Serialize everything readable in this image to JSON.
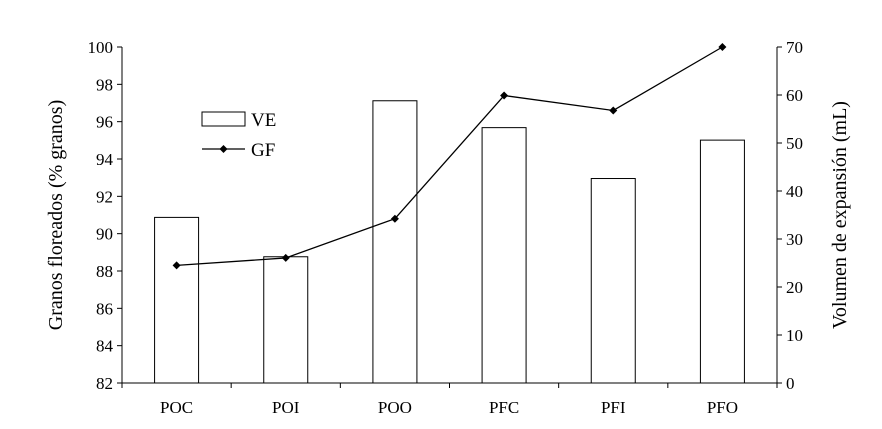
{
  "chart_data": {
    "type": "bar+line",
    "categories": [
      "POC",
      "POI",
      "POO",
      "PFC",
      "PFI",
      "PFO"
    ],
    "bar_series": {
      "name": "VE",
      "axis": "right",
      "values": [
        34.5,
        26.3,
        58.8,
        53.2,
        42.6,
        50.6
      ]
    },
    "line_series": {
      "name": "GF",
      "axis": "left",
      "values": [
        88.3,
        88.7,
        90.8,
        97.4,
        96.6,
        100.0
      ]
    },
    "left_axis": {
      "label": "Granos floreados (% granos)",
      "min": 82,
      "max": 100,
      "ticks": [
        "82",
        "84",
        "86",
        "88",
        "90",
        "92",
        "94",
        "96",
        "98",
        "100"
      ]
    },
    "right_axis": {
      "label": "Volumen de expansión (mL)",
      "min": 0,
      "max": 70,
      "ticks": [
        "0",
        "10",
        "20",
        "30",
        "40",
        "50",
        "60",
        "70"
      ]
    },
    "legend": [
      "VE",
      "GF"
    ],
    "legend_position": "top-left",
    "grid": false,
    "colors": {
      "axis": "#000000",
      "bar_fill": "#ffffff",
      "bar_stroke": "#000000",
      "line": "#000000"
    }
  }
}
